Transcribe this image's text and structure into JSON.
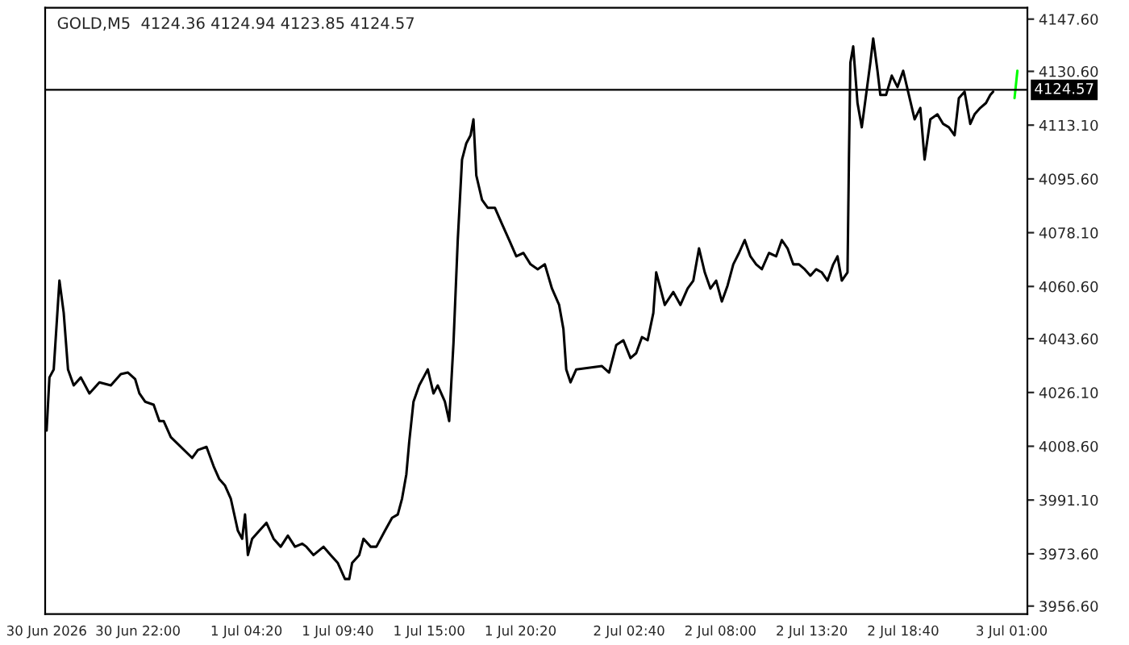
{
  "chart_data": {
    "type": "line",
    "title": "GOLD,M5  4124.36 4124.94 4123.85 4124.57",
    "xlim": [
      "2026-06-30T16:35",
      "2026-07-03T01:55"
    ],
    "ylim": [
      3954.0,
      4151.3
    ],
    "xticks": [
      {
        "value": "2026-06-30T16:40",
        "label": "30 Jun 2026"
      },
      {
        "value": "2026-06-30T22:00",
        "label": "30 Jun 22:00"
      },
      {
        "value": "2026-07-01T04:20",
        "label": "1 Jul 04:20"
      },
      {
        "value": "2026-07-01T09:40",
        "label": "1 Jul 09:40"
      },
      {
        "value": "2026-07-01T15:00",
        "label": "1 Jul 15:00"
      },
      {
        "value": "2026-07-01T20:20",
        "label": "1 Jul 20:20"
      },
      {
        "value": "2026-07-02T02:40",
        "label": "2 Jul 02:40"
      },
      {
        "value": "2026-07-02T08:00",
        "label": "2 Jul 08:00"
      },
      {
        "value": "2026-07-02T13:20",
        "label": "2 Jul 13:20"
      },
      {
        "value": "2026-07-02T18:40",
        "label": "2 Jul 18:40"
      },
      {
        "value": "2026-07-03T01:00",
        "label": "3 Jul 01:00"
      }
    ],
    "yticks": [
      {
        "value": 3956.6,
        "label": "3956.60"
      },
      {
        "value": 3973.6,
        "label": "3973.60"
      },
      {
        "value": 3991.1,
        "label": "3991.10"
      },
      {
        "value": 4008.6,
        "label": "4008.60"
      },
      {
        "value": 4026.1,
        "label": "4026.10"
      },
      {
        "value": 4043.6,
        "label": "4043.60"
      },
      {
        "value": 4060.6,
        "label": "4060.60"
      },
      {
        "value": 4078.1,
        "label": "4078.10"
      },
      {
        "value": 4095.6,
        "label": "4095.60"
      },
      {
        "value": 4113.1,
        "label": "4113.10"
      },
      {
        "value": 4130.6,
        "label": "4130.60"
      },
      {
        "value": 4147.6,
        "label": "4147.60"
      }
    ],
    "grid": false,
    "ref_lines": [
      {
        "axis": "y",
        "value": 4124.57,
        "label": "4124.57",
        "color": "#000000"
      }
    ],
    "series": [
      {
        "color": "#000000",
        "x": [
          "2026-06-30T16:40",
          "2026-06-30T16:50",
          "2026-06-30T17:05",
          "2026-06-30T17:25",
          "2026-06-30T17:40",
          "2026-06-30T17:55",
          "2026-06-30T18:15",
          "2026-06-30T18:40",
          "2026-06-30T19:10",
          "2026-06-30T19:45",
          "2026-06-30T20:25",
          "2026-06-30T21:00",
          "2026-06-30T21:25",
          "2026-06-30T21:50",
          "2026-06-30T22:05",
          "2026-06-30T22:25",
          "2026-06-30T22:55",
          "2026-06-30T23:15",
          "2026-06-30T23:30",
          "2026-06-30T23:55",
          "2026-07-01T01:10",
          "2026-07-01T01:30",
          "2026-07-01T02:00",
          "2026-07-01T02:25",
          "2026-07-01T02:45",
          "2026-07-01T03:05",
          "2026-07-01T03:25",
          "2026-07-01T03:50",
          "2026-07-01T04:05",
          "2026-07-01T04:15",
          "2026-07-01T04:25",
          "2026-07-01T04:40",
          "2026-07-01T05:05",
          "2026-07-01T05:30",
          "2026-07-01T05:55",
          "2026-07-01T06:20",
          "2026-07-01T06:45",
          "2026-07-01T07:10",
          "2026-07-01T07:35",
          "2026-07-01T07:50",
          "2026-07-01T08:15",
          "2026-07-01T08:50",
          "2026-07-01T09:15",
          "2026-07-01T09:40",
          "2026-07-01T10:05",
          "2026-07-01T10:20",
          "2026-07-01T10:30",
          "2026-07-01T10:55",
          "2026-07-01T11:10",
          "2026-07-01T11:35",
          "2026-07-01T11:55",
          "2026-07-01T12:25",
          "2026-07-01T12:50",
          "2026-07-01T13:10",
          "2026-07-01T13:25",
          "2026-07-01T13:40",
          "2026-07-01T13:50",
          "2026-07-01T14:05",
          "2026-07-01T14:25",
          "2026-07-01T14:40",
          "2026-07-01T14:55",
          "2026-07-01T15:15",
          "2026-07-01T15:30",
          "2026-07-01T15:55",
          "2026-07-01T16:10",
          "2026-07-01T16:25",
          "2026-07-01T16:40",
          "2026-07-01T16:55",
          "2026-07-01T17:10",
          "2026-07-01T17:25",
          "2026-07-01T17:35",
          "2026-07-01T17:45",
          "2026-07-01T18:05",
          "2026-07-01T18:25",
          "2026-07-01T18:50",
          "2026-07-01T19:15",
          "2026-07-01T19:40",
          "2026-07-01T20:05",
          "2026-07-01T20:30",
          "2026-07-01T20:55",
          "2026-07-01T21:20",
          "2026-07-01T21:45",
          "2026-07-01T22:10",
          "2026-07-01T22:35",
          "2026-07-01T22:50",
          "2026-07-01T23:00",
          "2026-07-01T23:15",
          "2026-07-01T23:35",
          "2026-07-02T01:05",
          "2026-07-02T01:30",
          "2026-07-02T01:55",
          "2026-07-02T02:20",
          "2026-07-02T02:45",
          "2026-07-02T03:05",
          "2026-07-02T03:25",
          "2026-07-02T03:45",
          "2026-07-02T04:05",
          "2026-07-02T04:15",
          "2026-07-02T04:30",
          "2026-07-02T04:45",
          "2026-07-02T05:15",
          "2026-07-02T05:40",
          "2026-07-02T06:05",
          "2026-07-02T06:25",
          "2026-07-02T06:45",
          "2026-07-02T07:05",
          "2026-07-02T07:25",
          "2026-07-02T07:45",
          "2026-07-02T08:05",
          "2026-07-02T08:25",
          "2026-07-02T08:45",
          "2026-07-02T09:05",
          "2026-07-02T09:25",
          "2026-07-02T09:45",
          "2026-07-02T10:05",
          "2026-07-02T10:25",
          "2026-07-02T10:50",
          "2026-07-02T11:15",
          "2026-07-02T11:35",
          "2026-07-02T11:55",
          "2026-07-02T12:15",
          "2026-07-02T12:35",
          "2026-07-02T12:55",
          "2026-07-02T13:15",
          "2026-07-02T13:35",
          "2026-07-02T13:55",
          "2026-07-02T14:15",
          "2026-07-02T14:35",
          "2026-07-02T14:50",
          "2026-07-02T15:05",
          "2026-07-02T15:25",
          "2026-07-02T15:30",
          "2026-07-02T15:35",
          "2026-07-02T15:45",
          "2026-07-02T16:00",
          "2026-07-02T16:15",
          "2026-07-02T16:30",
          "2026-07-02T16:45",
          "2026-07-02T16:55",
          "2026-07-02T17:10",
          "2026-07-02T17:20",
          "2026-07-02T17:40",
          "2026-07-02T18:00",
          "2026-07-02T18:20",
          "2026-07-02T18:40",
          "2026-07-02T19:00",
          "2026-07-02T19:20",
          "2026-07-02T19:40",
          "2026-07-02T19:55",
          "2026-07-02T20:15",
          "2026-07-02T20:40",
          "2026-07-02T21:00",
          "2026-07-02T21:20",
          "2026-07-02T21:40",
          "2026-07-02T21:55",
          "2026-07-02T22:15",
          "2026-07-02T22:35",
          "2026-07-02T22:50",
          "2026-07-02T23:10",
          "2026-07-02T23:30",
          "2026-07-02T23:45",
          "2026-07-02T23:55"
        ],
        "values": [
          4013.7,
          4031.0,
          4033.6,
          4062.5,
          4052.0,
          4033.6,
          4028.4,
          4031.0,
          4025.8,
          4029.4,
          4028.4,
          4032.1,
          4032.6,
          4030.5,
          4025.8,
          4023.1,
          4022.1,
          4016.8,
          4016.8,
          4011.6,
          4004.8,
          4007.4,
          4008.4,
          4002.1,
          3997.9,
          3995.8,
          3991.6,
          3981.1,
          3978.5,
          3986.4,
          3973.2,
          3978.5,
          3981.1,
          3983.7,
          3978.5,
          3975.9,
          3979.5,
          3975.9,
          3976.9,
          3975.9,
          3973.2,
          3975.9,
          3973.2,
          3970.6,
          3965.4,
          3965.4,
          3970.6,
          3973.2,
          3978.5,
          3975.9,
          3975.9,
          3981.1,
          3985.3,
          3986.4,
          3991.6,
          3999.5,
          4010.0,
          4023.1,
          4028.4,
          4031.0,
          4033.6,
          4025.8,
          4028.4,
          4023.1,
          4016.8,
          4042.1,
          4075.7,
          4101.9,
          4107.2,
          4109.8,
          4115.0,
          4096.7,
          4088.8,
          4086.2,
          4086.2,
          4080.9,
          4075.7,
          4070.4,
          4071.5,
          4067.8,
          4066.2,
          4067.8,
          4059.9,
          4054.6,
          4046.8,
          4033.6,
          4029.4,
          4033.6,
          4034.7,
          4032.6,
          4041.5,
          4043.1,
          4037.3,
          4038.9,
          4044.1,
          4043.1,
          4052.0,
          4065.2,
          4059.9,
          4054.6,
          4058.8,
          4054.6,
          4059.9,
          4062.5,
          4073.0,
          4065.2,
          4059.9,
          4062.5,
          4055.7,
          4060.9,
          4067.8,
          4071.5,
          4075.7,
          4070.4,
          4067.8,
          4066.2,
          4071.5,
          4070.4,
          4075.7,
          4073.0,
          4067.8,
          4067.8,
          4066.2,
          4064.1,
          4066.2,
          4065.2,
          4062.5,
          4067.8,
          4070.4,
          4062.5,
          4065.2,
          4101.9,
          4133.4,
          4138.7,
          4120.3,
          4112.4,
          4122.9,
          4133.4,
          4141.3,
          4130.8,
          4122.9,
          4122.9,
          4129.2,
          4125.5,
          4130.8,
          4122.9,
          4115.0,
          4118.7,
          4101.9,
          4115.0,
          4116.6,
          4113.5,
          4112.4,
          4109.8,
          4121.9,
          4124.0,
          4113.5,
          4116.6,
          4118.7,
          4120.3,
          4122.9,
          4124.0
        ]
      },
      {
        "color": "#00ff00",
        "x": [
          "2026-07-03T01:10",
          "2026-07-03T01:20"
        ],
        "values": [
          4121.9,
          4130.8
        ]
      }
    ]
  }
}
